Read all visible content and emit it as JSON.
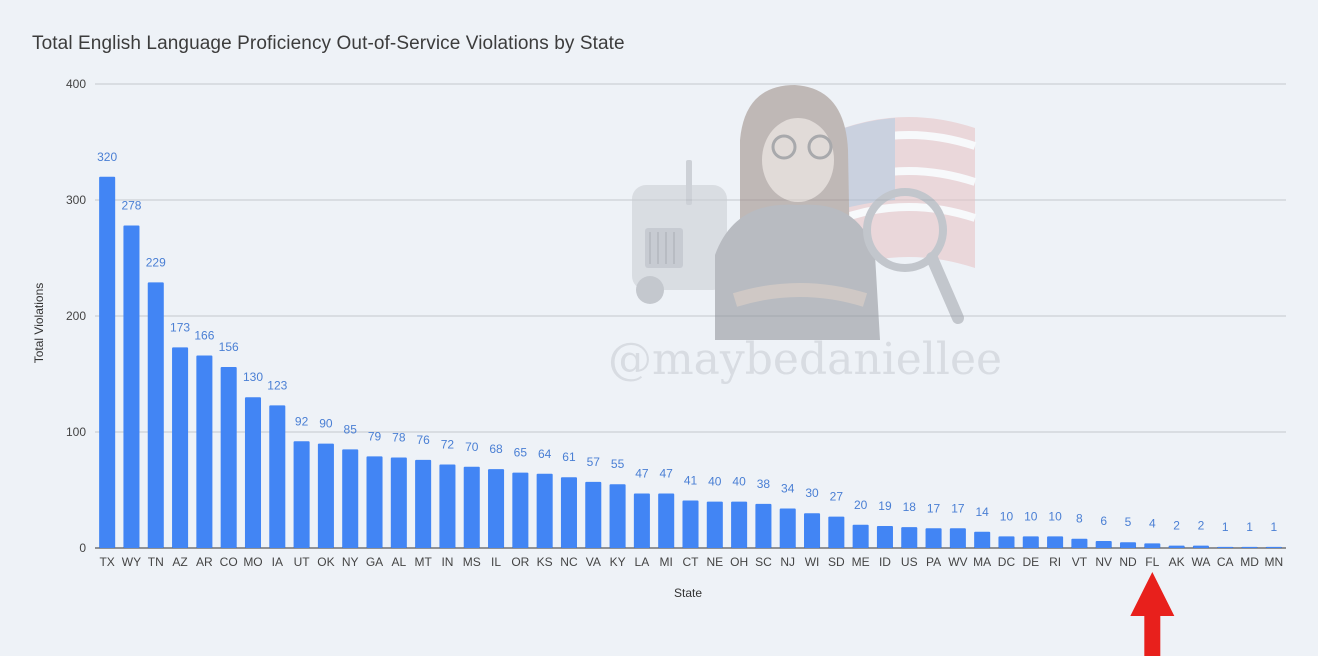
{
  "colors": {
    "background": "#eef2f7",
    "bar": "#4285f4",
    "value_label": "#4a7fd4",
    "gridline": "#c4c8ce",
    "arrow": "#e8201c"
  },
  "watermark": {
    "text": "@maybedaniellee",
    "icon": "caricature-woman-truck-flag-magnifier"
  },
  "annotation": {
    "icon": "red-up-arrow",
    "points_to": "FL"
  },
  "chart_data": {
    "type": "bar",
    "title": "Total English Language Proficiency Out-of-Service Violations by State",
    "xlabel": "State",
    "ylabel": "Total Violations",
    "ylim": [
      0,
      400
    ],
    "yticks": [
      "0",
      "100",
      "200",
      "300",
      "400"
    ],
    "grid": true,
    "legend": "none",
    "categories": [
      "TX",
      "WY",
      "TN",
      "AZ",
      "AR",
      "CO",
      "MO",
      "IA",
      "UT",
      "OK",
      "NY",
      "GA",
      "AL",
      "MT",
      "IN",
      "MS",
      "IL",
      "OR",
      "KS",
      "NC",
      "VA",
      "KY",
      "LA",
      "MI",
      "CT",
      "NE",
      "OH",
      "SC",
      "NJ",
      "WI",
      "SD",
      "ME",
      "ID",
      "US",
      "PA",
      "WV",
      "MA",
      "DC",
      "DE",
      "RI",
      "VT",
      "NV",
      "ND",
      "FL",
      "AK",
      "WA",
      "CA",
      "MD",
      "MN"
    ],
    "values": [
      320,
      278,
      229,
      173,
      166,
      156,
      130,
      123,
      92,
      90,
      85,
      79,
      78,
      76,
      72,
      70,
      68,
      65,
      64,
      61,
      57,
      55,
      47,
      47,
      41,
      40,
      40,
      38,
      34,
      30,
      27,
      20,
      19,
      18,
      17,
      17,
      14,
      10,
      10,
      10,
      8,
      6,
      5,
      4,
      2,
      2,
      1,
      1,
      1
    ]
  }
}
